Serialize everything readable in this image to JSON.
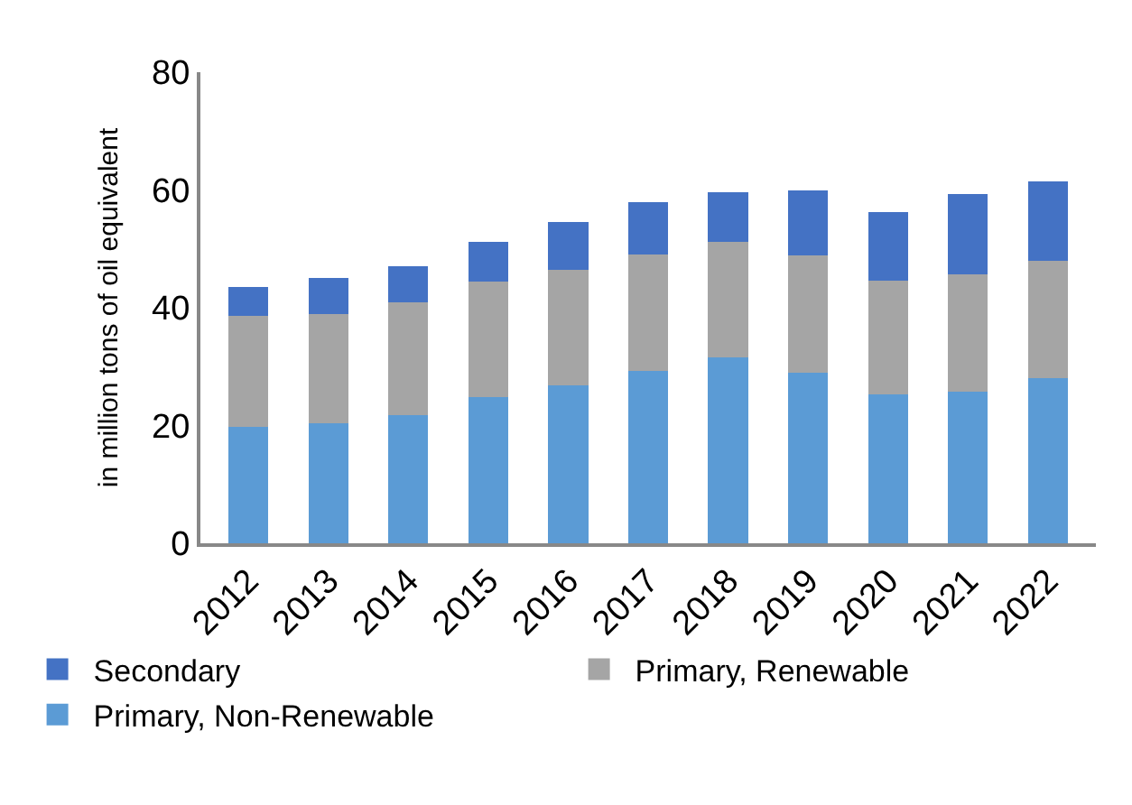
{
  "chart_data": {
    "type": "bar",
    "stacked": true,
    "ylabel": "in million tons of oil equivalent",
    "categories": [
      "2012",
      "2013",
      "2014",
      "2015",
      "2016",
      "2017",
      "2018",
      "2019",
      "2020",
      "2021",
      "2022"
    ],
    "series": [
      {
        "name": "Primary, Non-Renewable",
        "color": "#5b9bd5",
        "values": [
          19.8,
          20.4,
          21.7,
          24.9,
          26.8,
          29.3,
          31.5,
          29.0,
          25.3,
          25.8,
          28.0
        ]
      },
      {
        "name": "Primary, Renewable",
        "color": "#a5a5a5",
        "values": [
          18.8,
          18.5,
          19.2,
          19.6,
          19.7,
          19.7,
          19.7,
          19.9,
          19.3,
          19.9,
          20.0
        ]
      },
      {
        "name": "Secondary",
        "color": "#4472c4",
        "values": [
          4.9,
          6.1,
          6.1,
          6.7,
          8.1,
          9.0,
          8.4,
          11.0,
          11.7,
          13.6,
          13.5
        ]
      }
    ],
    "ylim": [
      0,
      80
    ],
    "yticks": [
      0,
      20,
      40,
      60,
      80
    ],
    "grid": false,
    "legend": "bottom"
  }
}
